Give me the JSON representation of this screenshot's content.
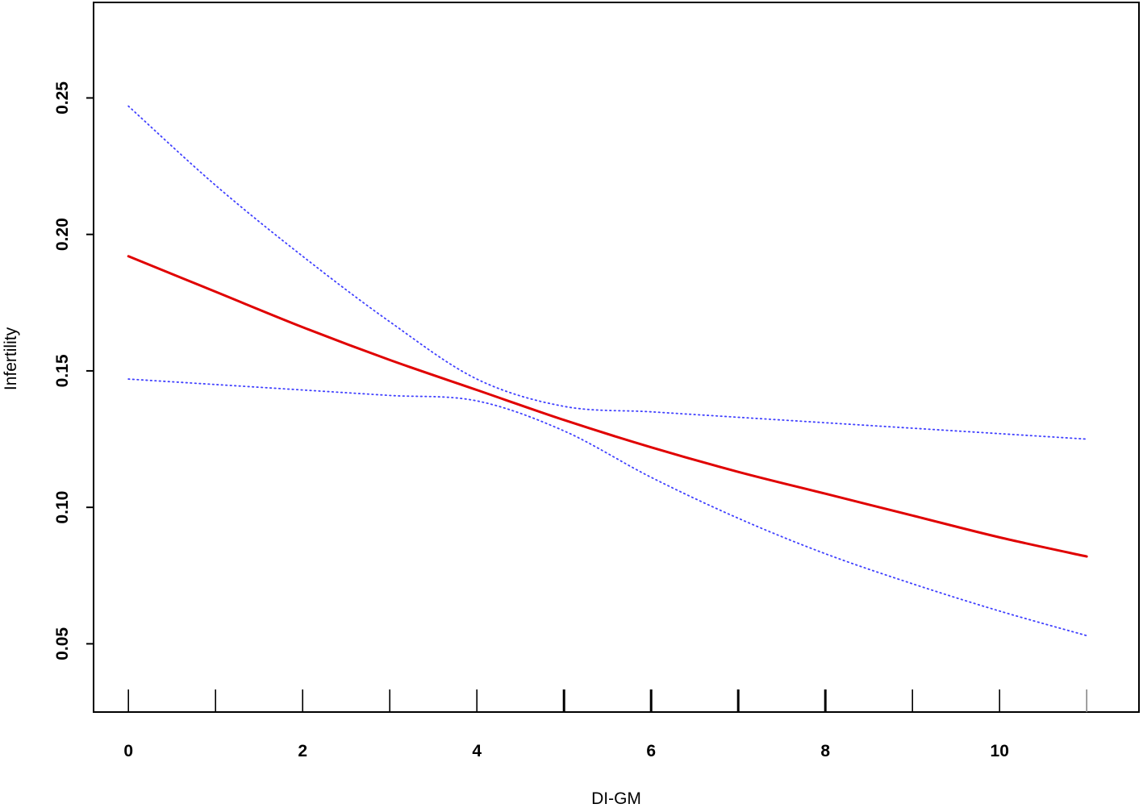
{
  "chart_data": {
    "type": "line",
    "xlabel": "DI-GM",
    "ylabel": "Infertility",
    "xlim": [
      -0.4,
      11.6
    ],
    "ylim": [
      0.025,
      0.285
    ],
    "x_ticks": [
      0,
      2,
      4,
      6,
      8,
      10
    ],
    "x_tick_labels": [
      "0",
      "2",
      "4",
      "6",
      "8",
      "10"
    ],
    "x_rug": [
      0,
      1,
      2,
      3,
      4,
      5,
      6,
      7,
      8,
      9,
      10,
      11
    ],
    "y_ticks": [
      0.05,
      0.1,
      0.15,
      0.2,
      0.25
    ],
    "y_tick_labels": [
      "0.05",
      "0.10",
      "0.15",
      "0.20",
      "0.25"
    ],
    "grid": false,
    "legend": "none",
    "series": [
      {
        "role": "estimate",
        "color": "#e00000",
        "style": "solid",
        "x": [
          0,
          1,
          2,
          3,
          4,
          5,
          6,
          7,
          8,
          9,
          10,
          11
        ],
        "values": [
          0.192,
          0.179,
          0.166,
          0.154,
          0.143,
          0.132,
          0.122,
          0.113,
          0.105,
          0.097,
          0.089,
          0.082
        ]
      },
      {
        "role": "upper-ci",
        "color": "#4040ff",
        "style": "dotted",
        "x": [
          0,
          1,
          2,
          3,
          4,
          5,
          6,
          7,
          8,
          9,
          10,
          11
        ],
        "values": [
          0.247,
          0.218,
          0.192,
          0.168,
          0.147,
          0.137,
          0.135,
          0.133,
          0.131,
          0.129,
          0.127,
          0.125
        ]
      },
      {
        "role": "lower-ci",
        "color": "#4040ff",
        "style": "dotted",
        "x": [
          0,
          1,
          2,
          3,
          4,
          5,
          6,
          7,
          8,
          9,
          10,
          11
        ],
        "values": [
          0.147,
          0.145,
          0.143,
          0.141,
          0.139,
          0.128,
          0.111,
          0.096,
          0.083,
          0.072,
          0.062,
          0.053
        ]
      }
    ]
  }
}
